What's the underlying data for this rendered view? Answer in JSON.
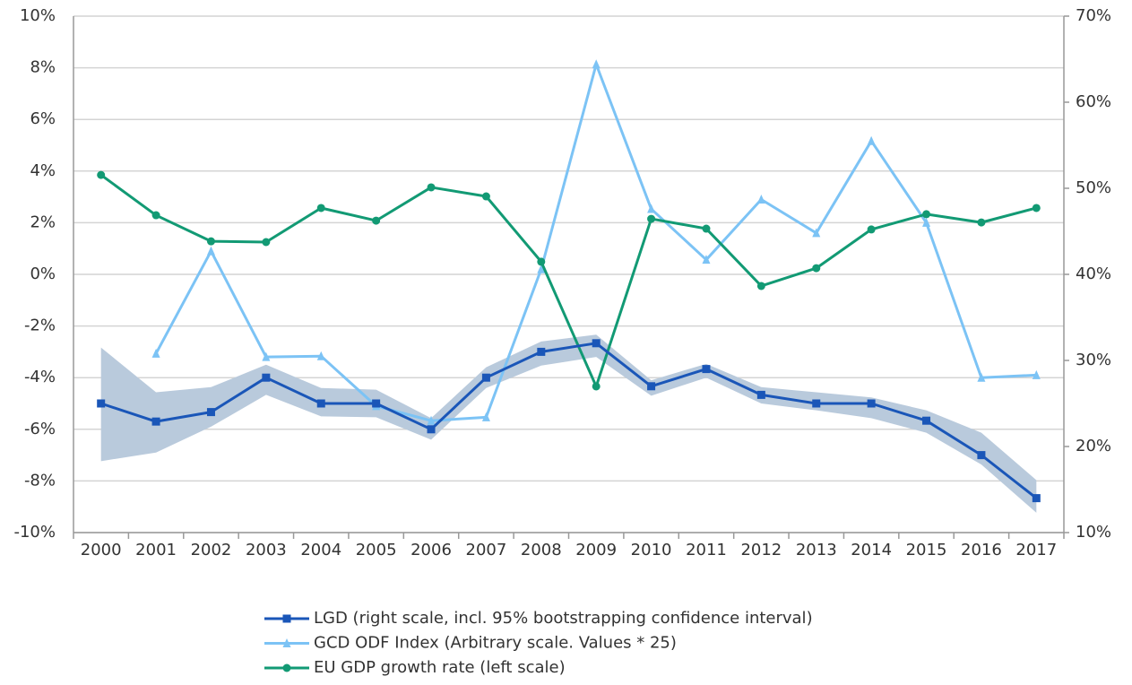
{
  "chart_data": {
    "type": "line",
    "categories": [
      "2000",
      "2001",
      "2002",
      "2003",
      "2004",
      "2005",
      "2006",
      "2007",
      "2008",
      "2009",
      "2010",
      "2011",
      "2012",
      "2013",
      "2014",
      "2015",
      "2016",
      "2017"
    ],
    "ylim": [
      -10,
      10
    ],
    "yticks": [
      {
        "value": -10,
        "label": "-10%"
      },
      {
        "value": -8,
        "label": "-8%"
      },
      {
        "value": -6,
        "label": "-6%"
      },
      {
        "value": -4,
        "label": "-4%"
      },
      {
        "value": -2,
        "label": "-2%"
      },
      {
        "value": 0,
        "label": "0%"
      },
      {
        "value": 2,
        "label": "2%"
      },
      {
        "value": 4,
        "label": "4%"
      },
      {
        "value": 6,
        "label": "6%"
      },
      {
        "value": 8,
        "label": "8%"
      },
      {
        "value": 10,
        "label": "10%"
      }
    ],
    "y2lim": [
      10,
      70
    ],
    "y2ticks": [
      {
        "value": 10,
        "label": "10%"
      },
      {
        "value": 20,
        "label": "20%"
      },
      {
        "value": 30,
        "label": "30%"
      },
      {
        "value": 40,
        "label": "40%"
      },
      {
        "value": 50,
        "label": "50%"
      },
      {
        "value": 60,
        "label": "60%"
      },
      {
        "value": 70,
        "label": "70%"
      }
    ],
    "grid": true,
    "legend": "bottom",
    "series": [
      {
        "name": "LGD (right scale, incl. 95% bootstrapping confidence interval)",
        "color": "#1a56b8",
        "band_color": "#b9cadc",
        "marker": "square",
        "axis": "y2",
        "values": [
          25.0,
          22.9,
          24.0,
          28.0,
          25.0,
          25.0,
          22.0,
          28.0,
          31.0,
          32.0,
          27.0,
          29.0,
          26.0,
          25.0,
          25.0,
          23.0,
          19.0,
          14.0
        ],
        "ci_upper": [
          31.5,
          26.3,
          26.9,
          29.5,
          26.8,
          26.6,
          23.3,
          29.2,
          32.2,
          33.0,
          27.7,
          29.6,
          26.9,
          26.3,
          25.7,
          24.2,
          21.6,
          16.1
        ],
        "ci_lower": [
          18.3,
          19.3,
          22.3,
          26.0,
          23.5,
          23.4,
          20.8,
          26.8,
          29.4,
          30.4,
          25.9,
          28.0,
          25.0,
          24.2,
          23.3,
          21.6,
          17.9,
          12.3
        ]
      },
      {
        "name": "GCD ODF Index (Arbitrary scale. Values * 25)",
        "color": "#7cc3f5",
        "marker": "triangle",
        "axis": "y2",
        "values": [
          null,
          30.8,
          42.7,
          30.4,
          30.5,
          24.7,
          23.0,
          23.4,
          40.6,
          64.4,
          47.6,
          41.7,
          48.7,
          44.8,
          55.5,
          46.0,
          28.0,
          28.3
        ]
      },
      {
        "name": "EU GDP growth rate (left scale)",
        "color": "#129a74",
        "marker": "circle",
        "axis": "y",
        "values": [
          3.85,
          2.29,
          1.28,
          1.25,
          2.57,
          2.08,
          3.37,
          3.02,
          0.49,
          -4.34,
          2.15,
          1.77,
          -0.45,
          0.24,
          1.74,
          2.33,
          2.01,
          2.57
        ]
      }
    ]
  }
}
